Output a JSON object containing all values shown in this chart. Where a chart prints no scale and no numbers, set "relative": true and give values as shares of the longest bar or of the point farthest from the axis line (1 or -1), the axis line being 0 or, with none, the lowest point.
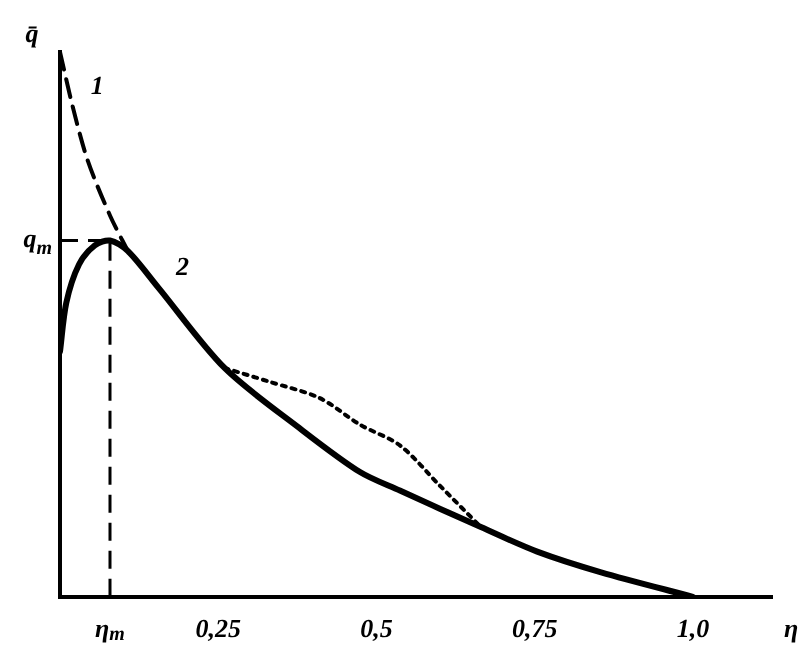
{
  "chart_data": {
    "type": "line",
    "relative": true,
    "xlabel": "η",
    "ylabel": "q̄",
    "tick_labels": "x",
    "grid": false,
    "legend": false,
    "marker": "none",
    "xlim": [
      0,
      1.125
    ],
    "xticks": [
      {
        "value": 0.25,
        "label": "0,25"
      },
      {
        "value": 0.5,
        "label": "0,5"
      },
      {
        "value": 0.75,
        "label": "0,75"
      },
      {
        "value": 1.0,
        "label": "1,0"
      }
    ],
    "ref_lines": [
      {
        "axis": "x",
        "value": 0.079,
        "label": "η$_{m}$",
        "line_style": "dashed"
      },
      {
        "axis": "y",
        "value": 0.654,
        "label": "q$_{m}$",
        "line_style": "dashed"
      }
    ],
    "series": [
      {
        "name": "1",
        "color": "#000000",
        "line_style": "dashed",
        "x": [
          0,
          0.02,
          0.044,
          0.079,
          0.107
        ],
        "values": [
          1.0,
          0.9,
          0.8,
          0.7,
          0.635
        ]
      },
      {
        "name": "2",
        "color": "#000000",
        "line_style": "solid",
        "x": [
          0,
          0.01,
          0.03,
          0.055,
          0.079,
          0.107,
          0.155,
          0.26,
          0.378,
          0.474,
          0.537,
          0.665,
          0.754,
          0.855,
          1.0
        ],
        "values": [
          0.45,
          0.54,
          0.61,
          0.645,
          0.654,
          0.635,
          0.568,
          0.42,
          0.31,
          0.229,
          0.195,
          0.128,
          0.083,
          0.045,
          0
        ]
      },
      {
        "color": "#000000",
        "line_style": "dotted",
        "x": [
          0.26,
          0.33,
          0.41,
          0.474,
          0.537,
          0.601,
          0.665
        ],
        "values": [
          0.42,
          0.395,
          0.365,
          0.316,
          0.278,
          0.203,
          0.128
        ]
      }
    ]
  }
}
